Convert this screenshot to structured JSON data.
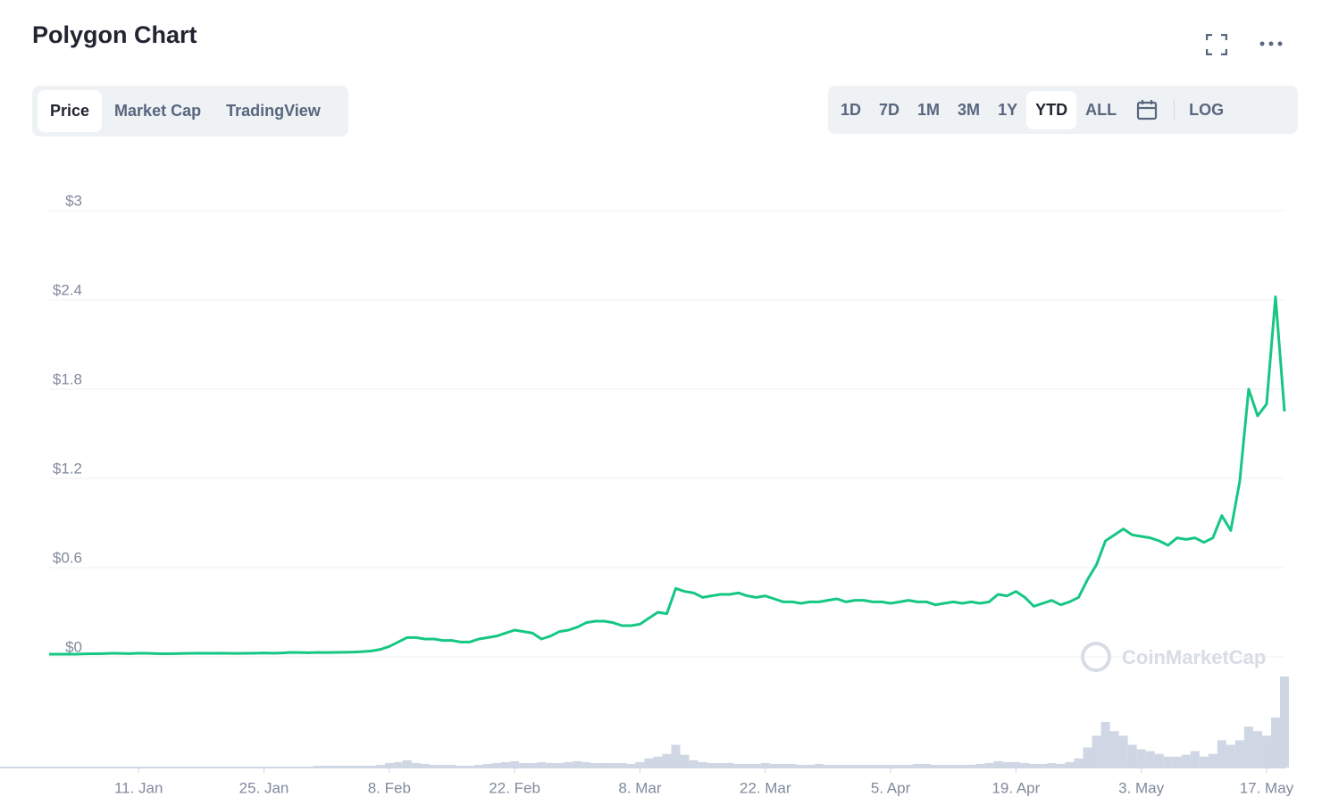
{
  "header": {
    "title": "Polygon Chart"
  },
  "tabs": {
    "items": [
      "Price",
      "Market Cap",
      "TradingView"
    ],
    "active": "Price"
  },
  "ranges": {
    "items": [
      "1D",
      "7D",
      "1M",
      "3M",
      "1Y",
      "YTD",
      "ALL"
    ],
    "active": "YTD",
    "log": "LOG"
  },
  "chart_data": {
    "type": "line",
    "watermark": "CoinMarketCap",
    "x": [
      "1. Jan",
      "2. Jan",
      "3. Jan",
      "4. Jan",
      "5. Jan",
      "6. Jan",
      "7. Jan",
      "8. Jan",
      "9. Jan",
      "10. Jan",
      "11. Jan",
      "12. Jan",
      "13. Jan",
      "14. Jan",
      "15. Jan",
      "16. Jan",
      "17. Jan",
      "18. Jan",
      "19. Jan",
      "20. Jan",
      "21. Jan",
      "22. Jan",
      "23. Jan",
      "24. Jan",
      "25. Jan",
      "26. Jan",
      "27. Jan",
      "28. Jan",
      "29. Jan",
      "30. Jan",
      "31. Jan",
      "1. Feb",
      "2. Feb",
      "3. Feb",
      "4. Feb",
      "5. Feb",
      "6. Feb",
      "7. Feb",
      "8. Feb",
      "9. Feb",
      "10. Feb",
      "11. Feb",
      "12. Feb",
      "13. Feb",
      "14. Feb",
      "15. Feb",
      "16. Feb",
      "17. Feb",
      "18. Feb",
      "19. Feb",
      "20. Feb",
      "21. Feb",
      "22. Feb",
      "23. Feb",
      "24. Feb",
      "25. Feb",
      "26. Feb",
      "27. Feb",
      "28. Feb",
      "1. Mar",
      "2. Mar",
      "3. Mar",
      "4. Mar",
      "5. Mar",
      "6. Mar",
      "7. Mar",
      "8. Mar",
      "9. Mar",
      "10. Mar",
      "11. Mar",
      "12. Mar",
      "13. Mar",
      "14. Mar",
      "15. Mar",
      "16. Mar",
      "17. Mar",
      "18. Mar",
      "19. Mar",
      "20. Mar",
      "21. Mar",
      "22. Mar",
      "23. Mar",
      "24. Mar",
      "25. Mar",
      "26. Mar",
      "27. Mar",
      "28. Mar",
      "29. Mar",
      "30. Mar",
      "31. Mar",
      "1. Apr",
      "2. Apr",
      "3. Apr",
      "4. Apr",
      "5. Apr",
      "6. Apr",
      "7. Apr",
      "8. Apr",
      "9. Apr",
      "10. Apr",
      "11. Apr",
      "12. Apr",
      "13. Apr",
      "14. Apr",
      "15. Apr",
      "16. Apr",
      "17. Apr",
      "18. Apr",
      "19. Apr",
      "20. Apr",
      "21. Apr",
      "22. Apr",
      "23. Apr",
      "24. Apr",
      "25. Apr",
      "26. Apr",
      "27. Apr",
      "28. Apr",
      "29. Apr",
      "30. Apr",
      "1. May",
      "2. May",
      "3. May",
      "4. May",
      "5. May",
      "6. May",
      "7. May",
      "8. May",
      "9. May",
      "10. May",
      "11. May",
      "12. May",
      "13. May",
      "14. May",
      "15. May",
      "16. May",
      "17. May",
      "18. May",
      "19. May"
    ],
    "series": [
      {
        "color": "#16c784",
        "values": [
          0.018,
          0.018,
          0.019,
          0.018,
          0.02,
          0.021,
          0.022,
          0.024,
          0.023,
          0.022,
          0.025,
          0.024,
          0.022,
          0.021,
          0.022,
          0.023,
          0.024,
          0.025,
          0.024,
          0.025,
          0.024,
          0.023,
          0.024,
          0.025,
          0.026,
          0.025,
          0.026,
          0.03,
          0.029,
          0.028,
          0.03,
          0.029,
          0.03,
          0.031,
          0.032,
          0.035,
          0.04,
          0.05,
          0.07,
          0.1,
          0.13,
          0.13,
          0.12,
          0.12,
          0.11,
          0.11,
          0.1,
          0.1,
          0.12,
          0.13,
          0.14,
          0.16,
          0.18,
          0.17,
          0.16,
          0.12,
          0.14,
          0.17,
          0.18,
          0.2,
          0.23,
          0.24,
          0.24,
          0.23,
          0.21,
          0.21,
          0.22,
          0.26,
          0.3,
          0.29,
          0.46,
          0.44,
          0.43,
          0.4,
          0.41,
          0.42,
          0.42,
          0.43,
          0.41,
          0.4,
          0.41,
          0.39,
          0.37,
          0.37,
          0.36,
          0.37,
          0.37,
          0.38,
          0.39,
          0.37,
          0.38,
          0.38,
          0.37,
          0.37,
          0.36,
          0.37,
          0.38,
          0.37,
          0.37,
          0.35,
          0.36,
          0.37,
          0.36,
          0.37,
          0.36,
          0.37,
          0.42,
          0.41,
          0.44,
          0.4,
          0.34,
          0.36,
          0.38,
          0.35,
          0.37,
          0.4,
          0.52,
          0.62,
          0.78,
          0.82,
          0.86,
          0.82,
          0.81,
          0.8,
          0.78,
          0.75,
          0.8,
          0.79,
          0.8,
          0.77,
          0.8,
          0.95,
          0.85,
          1.18,
          1.8,
          1.62,
          1.7,
          2.42,
          1.65
        ]
      },
      {
        "color": "#cfd6e4",
        "axis": "y2",
        "values": [
          1,
          1,
          1,
          1,
          1,
          1,
          1,
          1,
          1,
          1,
          1,
          1,
          1,
          1,
          1,
          1,
          1,
          1,
          1,
          1,
          1,
          1,
          1,
          1,
          1,
          1,
          1,
          1,
          1,
          1,
          2,
          2,
          2,
          2,
          2,
          2,
          2,
          3,
          5,
          6,
          8,
          5,
          4,
          3,
          3,
          3,
          2,
          2,
          3,
          4,
          5,
          6,
          7,
          5,
          5,
          6,
          5,
          5,
          6,
          7,
          6,
          5,
          5,
          5,
          5,
          4,
          6,
          10,
          12,
          15,
          25,
          14,
          8,
          6,
          5,
          5,
          5,
          4,
          4,
          4,
          5,
          4,
          4,
          4,
          3,
          3,
          4,
          3,
          3,
          3,
          3,
          3,
          3,
          3,
          3,
          3,
          3,
          4,
          4,
          3,
          3,
          3,
          3,
          3,
          4,
          5,
          7,
          6,
          6,
          5,
          4,
          4,
          5,
          4,
          6,
          10,
          22,
          35,
          50,
          40,
          35,
          25,
          20,
          18,
          15,
          12,
          12,
          14,
          18,
          12,
          15,
          30,
          25,
          30,
          45,
          40,
          35,
          55,
          100
        ]
      }
    ],
    "ylim": [
      0,
      3
    ],
    "yticks": [
      {
        "value": 0,
        "label": "$0"
      },
      {
        "value": 0.6,
        "label": "$0.6"
      },
      {
        "value": 1.2,
        "label": "$1.2"
      },
      {
        "value": 1.8,
        "label": "$1.8"
      },
      {
        "value": 2.4,
        "label": "$2.4"
      },
      {
        "value": 3,
        "label": "$3"
      }
    ],
    "y2lim": [
      0,
      100
    ],
    "xticks": [
      "11. Jan",
      "25. Jan",
      "8. Feb",
      "22. Feb",
      "8. Mar",
      "22. Mar",
      "5. Apr",
      "19. Apr",
      "3. May",
      "17. May"
    ],
    "grid": true
  }
}
